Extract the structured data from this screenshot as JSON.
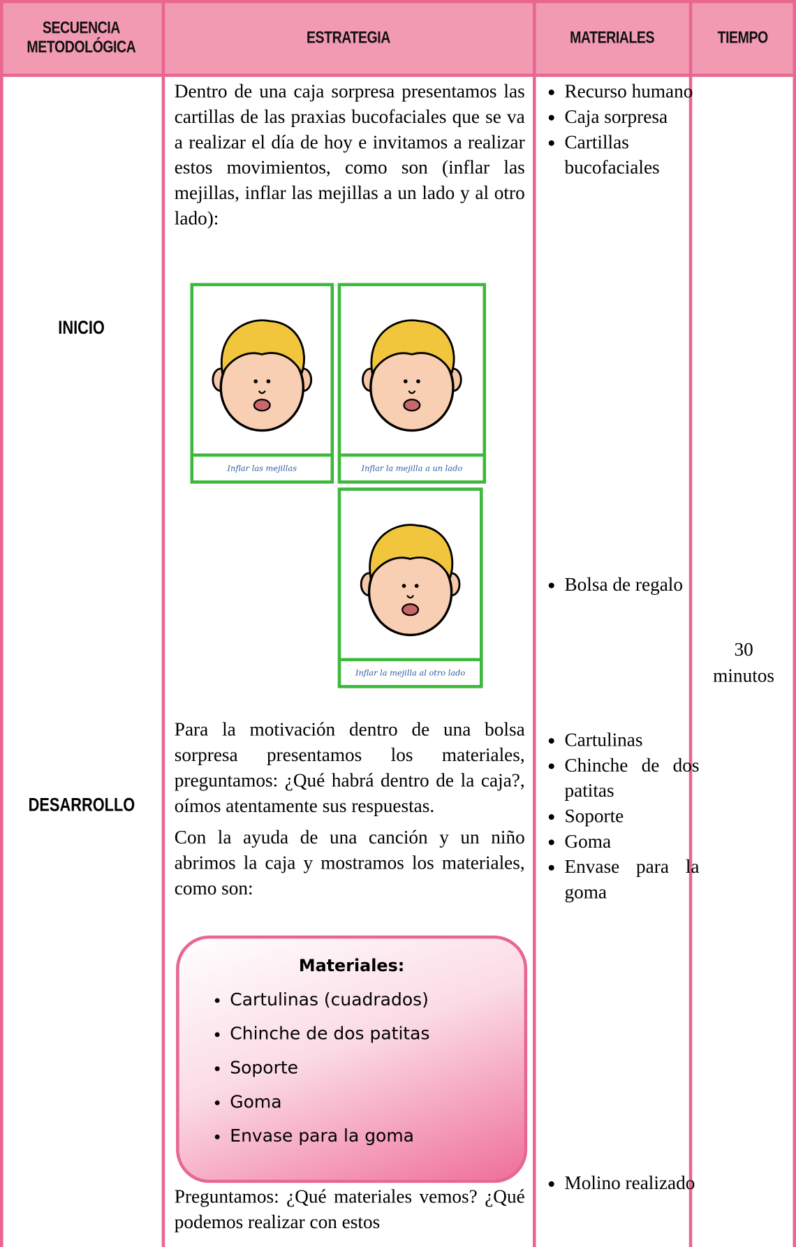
{
  "table": {
    "headers": [
      "SECUENCIA METODOLÓGICA",
      "ESTRATEGIA",
      "MATERIALES",
      "TIEMPO"
    ],
    "phases": [
      "INICIO",
      "DESARROLLO"
    ],
    "strategy": {
      "intro": "Dentro de una caja sorpresa presentamos las cartillas de las praxias bucofaciales que se va a realizar el día de hoy e invitamos a realizar estos movimientos, como son (inflar las mejillas, inflar las mejillas a un lado y al otro lado):",
      "cards": [
        "Inflar las mejillas",
        "Inflar la mejilla a un lado",
        "Inflar la mejilla al otro lado"
      ],
      "motivation": "Para la motivación dentro de una bolsa sorpresa presentamos los materiales, preguntamos: ¿Qué habrá dentro de la caja?, oímos atentamente sus respuestas.",
      "opening": "Con la ayuda de una canción y un niño abrimos la caja y mostramos los materiales, como son:",
      "box": {
        "title": "Materiales:",
        "items": [
          "Cartulinas (cuadrados)",
          "Chinche de dos patitas",
          "Soporte",
          "Goma",
          "Envase para la goma"
        ]
      },
      "question": "Preguntamos: ¿Qué materiales vemos? ¿Qué podemos realizar con estos"
    },
    "materials": [
      [
        "Recurso humano",
        "Caja sorpresa",
        "Cartillas bucofaciales"
      ],
      [
        "Bolsa de regalo"
      ],
      [
        "Cartulinas",
        "Chinche de dos patitas",
        "Soporte",
        "Goma",
        "Envase para la goma"
      ],
      [
        "Molino realizado"
      ]
    ],
    "time": "30 minutos"
  }
}
